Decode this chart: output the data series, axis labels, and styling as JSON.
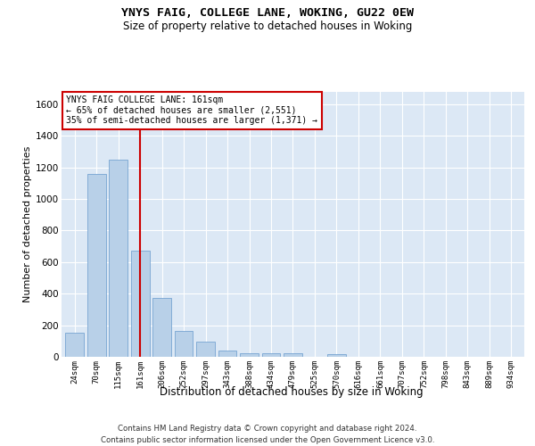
{
  "title1": "YNYS FAIG, COLLEGE LANE, WOKING, GU22 0EW",
  "title2": "Size of property relative to detached houses in Woking",
  "xlabel": "Distribution of detached houses by size in Woking",
  "ylabel": "Number of detached properties",
  "categories": [
    "24sqm",
    "70sqm",
    "115sqm",
    "161sqm",
    "206sqm",
    "252sqm",
    "297sqm",
    "343sqm",
    "388sqm",
    "434sqm",
    "479sqm",
    "525sqm",
    "570sqm",
    "616sqm",
    "661sqm",
    "707sqm",
    "752sqm",
    "798sqm",
    "843sqm",
    "889sqm",
    "934sqm"
  ],
  "values": [
    150,
    1160,
    1250,
    670,
    370,
    165,
    95,
    40,
    25,
    20,
    20,
    0,
    15,
    0,
    0,
    0,
    0,
    0,
    0,
    0,
    0
  ],
  "bar_color": "#b8d0e8",
  "bar_edge_color": "#6699cc",
  "highlight_index": 3,
  "annotation_line1": "YNYS FAIG COLLEGE LANE: 161sqm",
  "annotation_line2": "← 65% of detached houses are smaller (2,551)",
  "annotation_line3": "35% of semi-detached houses are larger (1,371) →",
  "vline_color": "#cc0000",
  "ylim_max": 1680,
  "yticks": [
    0,
    200,
    400,
    600,
    800,
    1000,
    1200,
    1400,
    1600
  ],
  "bg_color": "#dce8f5",
  "footer1": "Contains HM Land Registry data © Crown copyright and database right 2024.",
  "footer2": "Contains public sector information licensed under the Open Government Licence v3.0."
}
